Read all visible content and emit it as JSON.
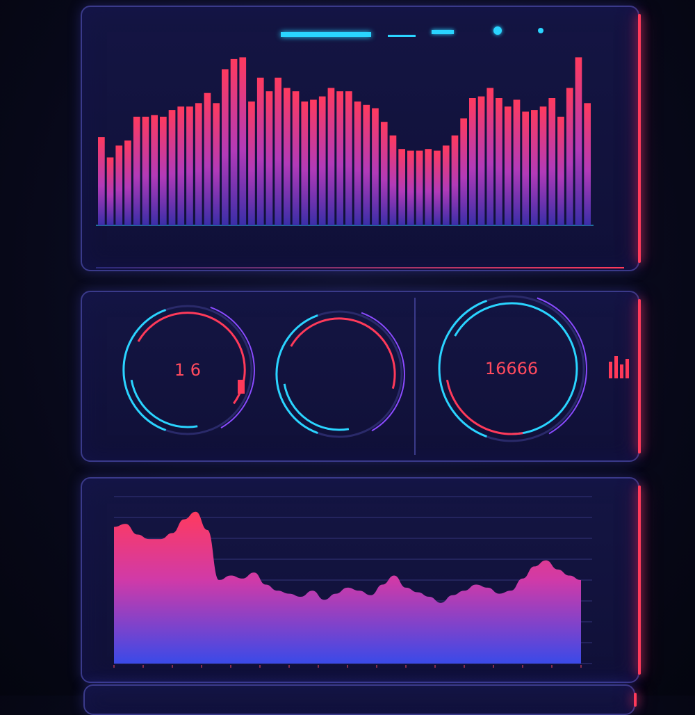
{
  "colors": {
    "accent_pink": "#ff3a5a",
    "accent_cyan": "#2ad4ff",
    "accent_purple": "#8a4bff",
    "panel_bg": "#121340"
  },
  "gauges": [
    {
      "value_text": "1 6",
      "fill": 0.62
    },
    {
      "value_text": "",
      "fill": 0.55
    },
    {
      "value_text": "16666",
      "fill": 0.8
    }
  ],
  "chart_data": [
    {
      "type": "bar",
      "values": [
        52,
        40,
        47,
        50,
        64,
        64,
        65,
        64,
        68,
        70,
        70,
        72,
        78,
        72,
        92,
        98,
        99,
        73,
        87,
        79,
        87,
        81,
        79,
        73,
        74,
        76,
        81,
        79,
        79,
        73,
        71,
        69,
        61,
        53,
        45,
        44,
        44,
        45,
        44,
        47,
        53,
        63,
        75,
        76,
        81,
        75,
        70,
        74,
        67,
        68,
        70,
        75,
        64,
        81,
        99,
        72
      ],
      "xlabel": "",
      "ylabel": "",
      "ylim": [
        0,
        100
      ],
      "grid": false
    },
    {
      "type": "area",
      "values": [
        90,
        92,
        85,
        82,
        82,
        86,
        95,
        100,
        88,
        55,
        58,
        56,
        60,
        52,
        48,
        46,
        44,
        48,
        42,
        46,
        50,
        48,
        45,
        52,
        58,
        50,
        47,
        44,
        40,
        45,
        48,
        52,
        50,
        46,
        48,
        56,
        64,
        68,
        62,
        58,
        55
      ],
      "xlabel": "",
      "ylabel": "",
      "ylim": [
        0,
        110
      ],
      "grid": true
    }
  ]
}
